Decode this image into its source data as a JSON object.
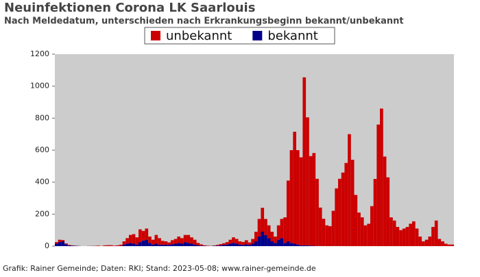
{
  "chart_data": {
    "type": "bar",
    "stacked": true,
    "title": "Neuinfektionen Corona LK Saarlouis",
    "subtitle": "Nach Meldedatum, unterschieden nach Erkrankungsbeginn bekannt/unbekannt",
    "footer": "Grafik: Rainer Gemeinde; Daten: RKI; Stand: 2023-05-08; www.rainer-gemeinde.de",
    "ylim": [
      0,
      1200
    ],
    "yticks": [
      0,
      200,
      400,
      600,
      800,
      1000,
      1200
    ],
    "background": "#cccccc",
    "series": [
      {
        "name": "unbekannt",
        "color": "#cc0000",
        "values": [
          10,
          15,
          8,
          5,
          3,
          2,
          1,
          0,
          0,
          0,
          1,
          0,
          2,
          3,
          1,
          4,
          6,
          5,
          3,
          5,
          8,
          20,
          35,
          50,
          60,
          45,
          80,
          60,
          70,
          40,
          30,
          55,
          40,
          25,
          20,
          15,
          25,
          30,
          40,
          35,
          45,
          50,
          40,
          30,
          15,
          8,
          3,
          2,
          1,
          2,
          5,
          8,
          10,
          15,
          25,
          35,
          30,
          20,
          18,
          25,
          15,
          30,
          60,
          110,
          150,
          100,
          80,
          60,
          40,
          90,
          120,
          160,
          380,
          580,
          700,
          590,
          550,
          1050,
          800,
          560,
          580,
          420,
          240,
          170,
          130,
          125,
          220,
          360,
          420,
          460,
          520,
          700,
          540,
          320,
          210,
          180,
          130,
          140,
          250,
          420,
          760,
          860,
          560,
          430,
          180,
          160,
          120,
          100,
          110,
          120,
          140,
          155,
          110,
          60,
          30,
          40,
          60,
          120,
          160,
          45,
          30,
          15,
          10,
          10
        ]
      },
      {
        "name": "bekannt",
        "color": "#00008b",
        "values": [
          15,
          25,
          30,
          12,
          5,
          3,
          2,
          1,
          0,
          0,
          0,
          1,
          0,
          0,
          0,
          1,
          0,
          1,
          0,
          0,
          1,
          10,
          15,
          20,
          15,
          10,
          25,
          35,
          40,
          20,
          10,
          15,
          10,
          8,
          10,
          8,
          12,
          15,
          20,
          15,
          25,
          20,
          15,
          10,
          5,
          3,
          2,
          1,
          1,
          2,
          3,
          5,
          8,
          10,
          15,
          20,
          15,
          10,
          8,
          12,
          8,
          15,
          30,
          60,
          90,
          70,
          50,
          30,
          20,
          40,
          50,
          20,
          30,
          20,
          15,
          10,
          5,
          5,
          5,
          3,
          2,
          1,
          1,
          1,
          0,
          0,
          1,
          1,
          1,
          0,
          0,
          0,
          0,
          0,
          0,
          0,
          0,
          0,
          0,
          0,
          0,
          0,
          0,
          0,
          0,
          0,
          0,
          0,
          0,
          0,
          0,
          0,
          0,
          0,
          0,
          0,
          0,
          0,
          0,
          0,
          0,
          0,
          0,
          0
        ]
      }
    ]
  }
}
